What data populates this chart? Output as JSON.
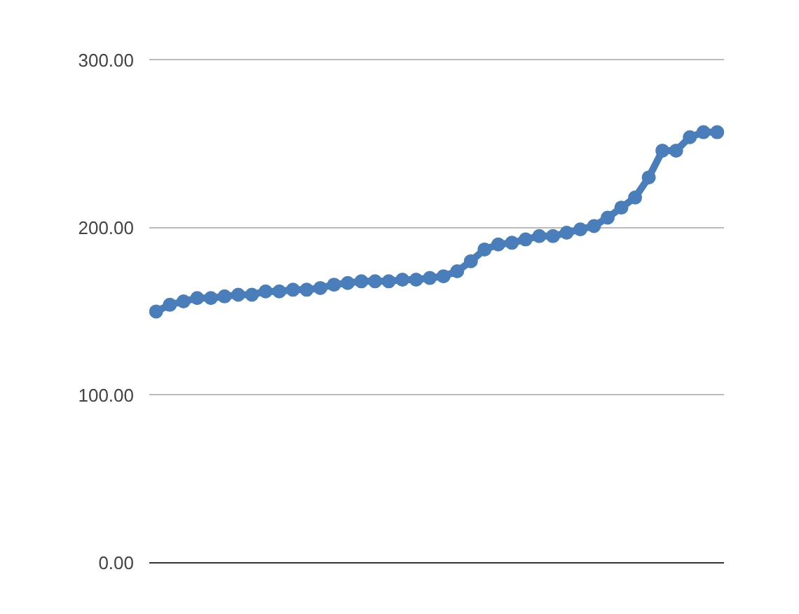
{
  "chart_data": {
    "type": "line",
    "categories": [
      null,
      null,
      null,
      null,
      null,
      null,
      null,
      null,
      null,
      null,
      null,
      null,
      null,
      null,
      null,
      null,
      null,
      null,
      null,
      null,
      null,
      null,
      null,
      null,
      null,
      null,
      null,
      null,
      null,
      null,
      null,
      null,
      null,
      null,
      null,
      null,
      null,
      null,
      null,
      null,
      null,
      null
    ],
    "series": [
      {
        "color": "#4a7ebb",
        "values": [
          150,
          154,
          156,
          158,
          158,
          159,
          160,
          160,
          162,
          162,
          163,
          163,
          164,
          166,
          167,
          168,
          168,
          168,
          169,
          169,
          170,
          171,
          174,
          180,
          187,
          190,
          191,
          193,
          195,
          195,
          197,
          199,
          201,
          206,
          212,
          218,
          230,
          246,
          246,
          254,
          257,
          257
        ]
      }
    ],
    "ylim": [
      0,
      302
    ],
    "yticks": [
      {
        "value": 0,
        "label": "0.00"
      },
      {
        "value": 100,
        "label": "100.00"
      },
      {
        "value": 200,
        "label": "200.00"
      },
      {
        "value": 300,
        "label": "300.00"
      }
    ],
    "grid": "y",
    "marker": "circle",
    "line_style": "solid"
  }
}
